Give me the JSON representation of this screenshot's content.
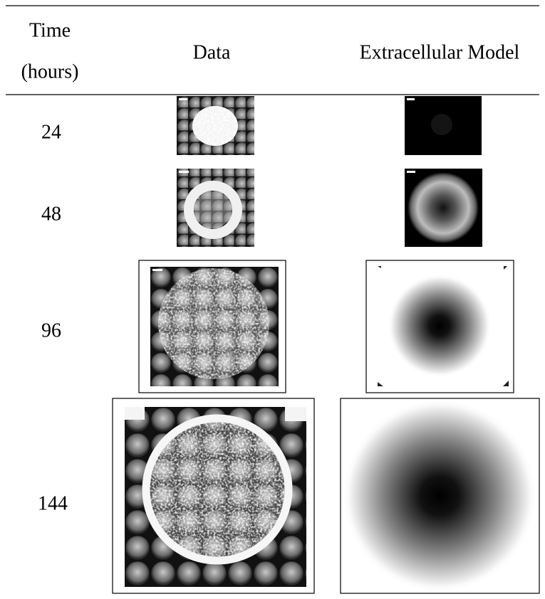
{
  "header": {
    "time": "Time",
    "unit": "(hours)",
    "data": "Data",
    "model": "Extracellular Model"
  },
  "rows": [
    {
      "time": 24
    },
    {
      "time": 48
    },
    {
      "time": 96
    },
    {
      "time": 144
    }
  ]
}
